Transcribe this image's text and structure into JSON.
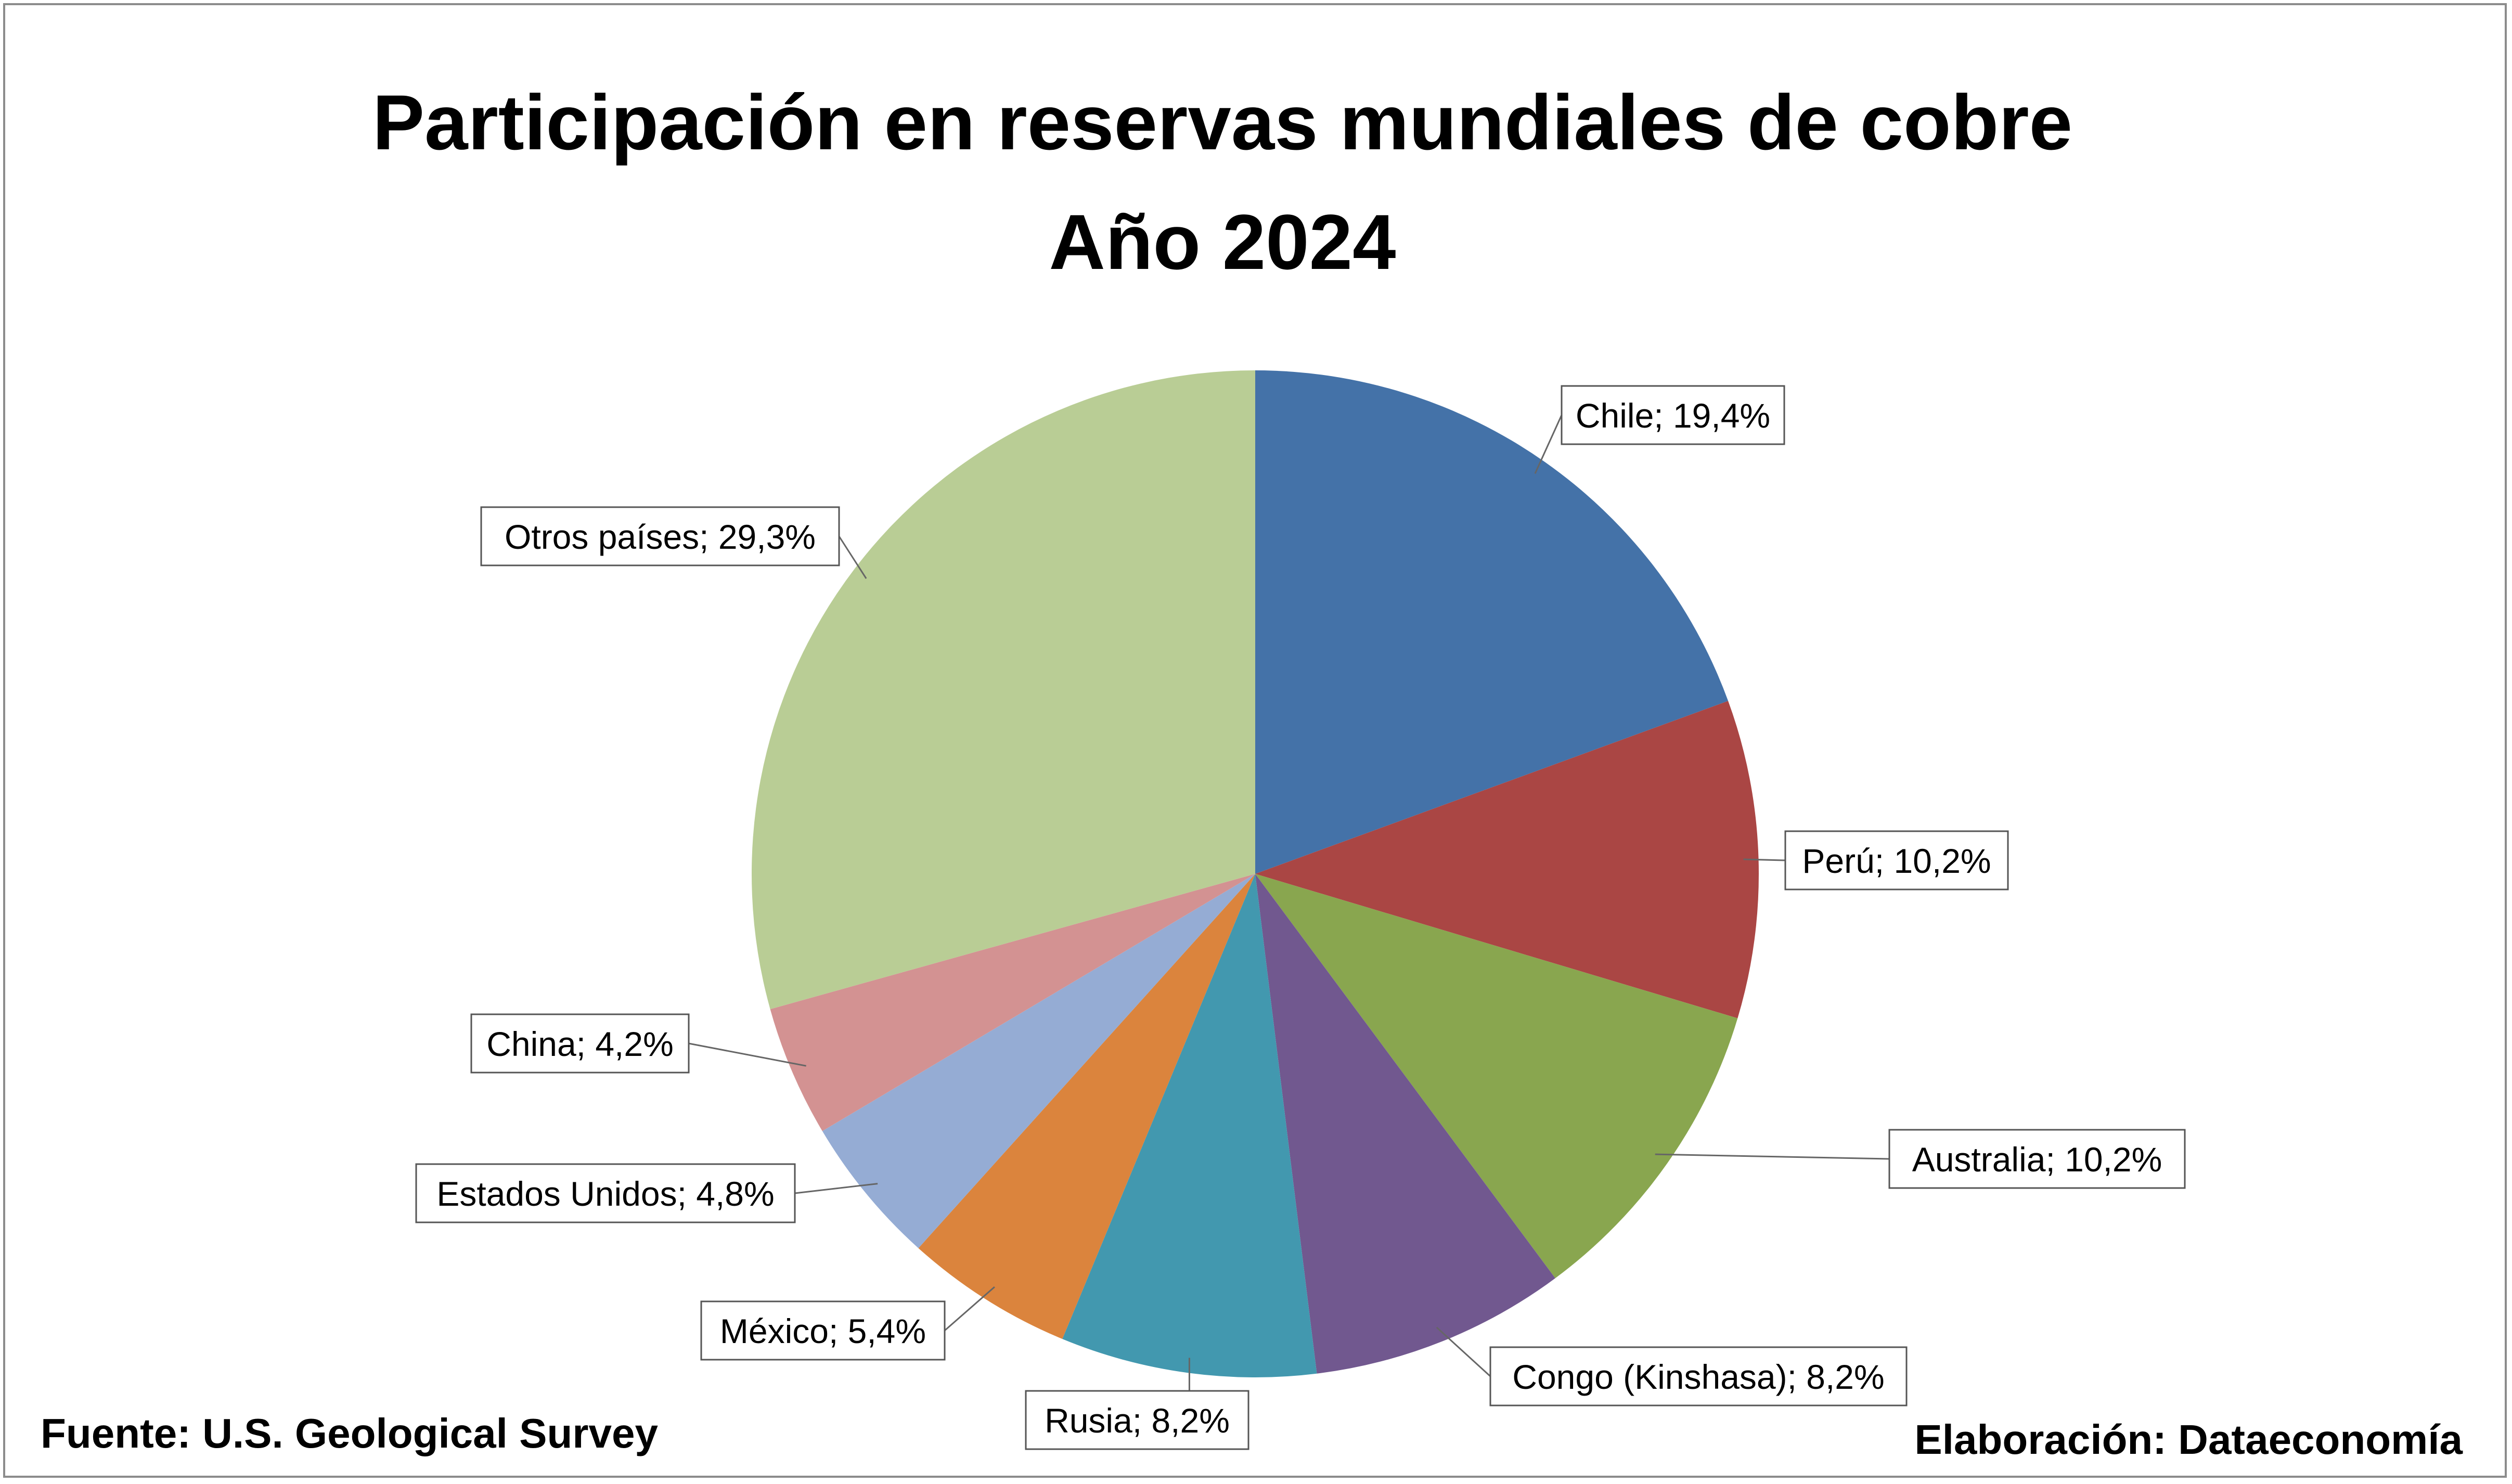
{
  "title": "Participación en reservas mundiales de cobre",
  "subtitle": "Año 2024",
  "footer": {
    "source": "Fuente: U.S. Geological Survey",
    "credit": "Elaboración: Dataeconomía"
  },
  "chart_data": {
    "type": "pie",
    "title": "Participación en reservas mundiales de cobre",
    "subtitle": "Año 2024",
    "unit": "%",
    "start": "12 o'clock",
    "direction": "clockwise",
    "slices": [
      {
        "label": "Chile",
        "value": 19.4,
        "data_label": "Chile; 19,4%",
        "color": "#4472a8"
      },
      {
        "label": "Perú",
        "value": 10.2,
        "data_label": "Perú; 10,2%",
        "color": "#aa4644"
      },
      {
        "label": "Australia",
        "value": 10.2,
        "data_label": "Australia; 10,2%",
        "color": "#89a64f"
      },
      {
        "label": "Congo (Kinshasa)",
        "value": 8.2,
        "data_label": "Congo (Kinshasa); 8,2%",
        "color": "#71588f"
      },
      {
        "label": "Rusia",
        "value": 8.2,
        "data_label": "Rusia; 8,2%",
        "color": "#4298af"
      },
      {
        "label": "México",
        "value": 5.4,
        "data_label": "México; 5,4%",
        "color": "#db843d"
      },
      {
        "label": "Estados Unidos",
        "value": 4.8,
        "data_label": "Estados Unidos; 4,8%",
        "color": "#95acd4"
      },
      {
        "label": "China",
        "value": 4.2,
        "data_label": "China; 4,2%",
        "color": "#d39292"
      },
      {
        "label": "Otros países",
        "value": 29.3,
        "data_label": "Otros países; 29,3%",
        "color": "#b9cd95"
      }
    ]
  }
}
